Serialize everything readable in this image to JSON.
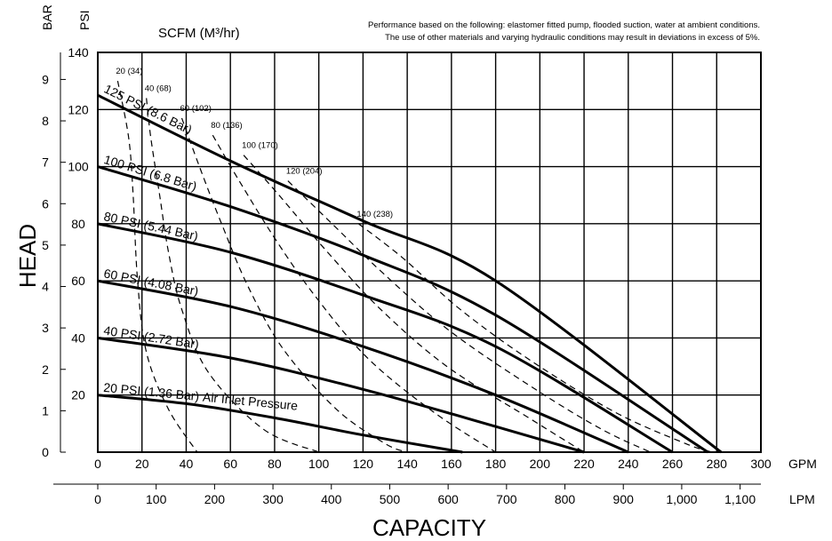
{
  "chart_data": {
    "type": "line",
    "title": "",
    "xlabel": "CAPACITY",
    "ylabel": "HEAD",
    "note_line1": "Performance based on the following: elastomer fitted pump, flooded suction, water at ambient conditions.",
    "note_line2": "The use of other materials and varying hydraulic conditions may result in deviations in excess of 5%.",
    "scfm_header": "SCFM (M³/hr)",
    "x_gpm": {
      "unit": "GPM",
      "lim": [
        0,
        300
      ],
      "ticks": [
        "0",
        "20",
        "40",
        "60",
        "80",
        "100",
        "120",
        "140",
        "160",
        "180",
        "200",
        "220",
        "240",
        "260",
        "280",
        "300"
      ]
    },
    "x_lpm": {
      "unit": "LPM",
      "lim": [
        0,
        1135.6
      ],
      "ticks": [
        {
          "v": 0,
          "label": "0"
        },
        {
          "v": 100,
          "label": "100"
        },
        {
          "v": 200,
          "label": "200"
        },
        {
          "v": 300,
          "label": "300"
        },
        {
          "v": 400,
          "label": "400"
        },
        {
          "v": 500,
          "label": "500"
        },
        {
          "v": 600,
          "label": "600"
        },
        {
          "v": 700,
          "label": "700"
        },
        {
          "v": 800,
          "label": "800"
        },
        {
          "v": 900,
          "label": "900"
        },
        {
          "v": 1000,
          "label": "1,000"
        },
        {
          "v": 1100,
          "label": "1,100"
        }
      ]
    },
    "y_psi": {
      "unit": "PSI",
      "lim": [
        0,
        140
      ],
      "ticks": [
        "20",
        "40",
        "60",
        "80",
        "100",
        "120",
        "140"
      ]
    },
    "y_bar": {
      "unit": "BAR",
      "ticks": [
        {
          "v": 0,
          "label": "0"
        },
        {
          "v": 1,
          "label": "1"
        },
        {
          "v": 2,
          "label": "2"
        },
        {
          "v": 3,
          "label": "3"
        },
        {
          "v": 4,
          "label": "4"
        },
        {
          "v": 5,
          "label": "5"
        },
        {
          "v": 6,
          "label": "6"
        },
        {
          "v": 7,
          "label": "7"
        },
        {
          "v": 8,
          "label": "8"
        },
        {
          "v": 9,
          "label": "9"
        }
      ]
    },
    "grid": true,
    "series": [
      {
        "name": "20 PSI (1.36 Bar)",
        "label": "20 PSI (1.36 Bar)",
        "suffix": "Air Inlet Pressure",
        "x": [
          0,
          40,
          80,
          120,
          165
        ],
        "y": [
          20,
          17,
          12,
          6,
          0
        ]
      },
      {
        "name": "40 PSI (2.72 Bar)",
        "label": "40 PSI (2.72 Bar)",
        "x": [
          0,
          60,
          120,
          180,
          220
        ],
        "y": [
          40,
          33,
          22,
          9,
          0
        ]
      },
      {
        "name": "60 PSI (4.08 Bar)",
        "label": "60 PSI (4.08 Bar)",
        "x": [
          0,
          60,
          120,
          180,
          240
        ],
        "y": [
          60,
          51,
          37,
          20,
          0
        ]
      },
      {
        "name": "80 PSI (5.44 Bar)",
        "label": "80 PSI (5.44 Bar)",
        "x": [
          0,
          60,
          120,
          180,
          260
        ],
        "y": [
          80,
          70,
          55,
          37,
          0
        ]
      },
      {
        "name": "100 PSI (6.8 Bar)",
        "label": "100 PSI (6.8 Bar)",
        "x": [
          0,
          60,
          120,
          180,
          276
        ],
        "y": [
          100,
          86,
          69,
          48,
          0
        ]
      },
      {
        "name": "125 PSI (8.6 Bar)",
        "label": "125 PSI (8.6 Bar)",
        "x": [
          0,
          60,
          120,
          180,
          282
        ],
        "y": [
          125,
          102,
          81,
          60,
          0
        ]
      }
    ],
    "scfm_curves": [
      {
        "label": "20 (34)",
        "points": [
          [
            9,
            130
          ],
          [
            14,
            110
          ],
          [
            16,
            90
          ],
          [
            18,
            60
          ],
          [
            22,
            35
          ],
          [
            32,
            15
          ],
          [
            45,
            0
          ]
        ]
      },
      {
        "label": "40 (68)",
        "points": [
          [
            22,
            124
          ],
          [
            24,
            110
          ],
          [
            28,
            90
          ],
          [
            32,
            70
          ],
          [
            38,
            50
          ],
          [
            50,
            28
          ],
          [
            75,
            8
          ],
          [
            100,
            0
          ]
        ]
      },
      {
        "label": "60 (102)",
        "points": [
          [
            38,
            117
          ],
          [
            46,
            100
          ],
          [
            56,
            80
          ],
          [
            68,
            58
          ],
          [
            84,
            36
          ],
          [
            108,
            15
          ],
          [
            130,
            3
          ],
          [
            140,
            0
          ]
        ]
      },
      {
        "label": "80 (136)",
        "points": [
          [
            52,
            111
          ],
          [
            64,
            95
          ],
          [
            80,
            75
          ],
          [
            98,
            55
          ],
          [
            122,
            33
          ],
          [
            152,
            14
          ],
          [
            180,
            0
          ]
        ]
      },
      {
        "label": "100 (170)",
        "points": [
          [
            66,
            104
          ],
          [
            82,
            90
          ],
          [
            104,
            70
          ],
          [
            128,
            50
          ],
          [
            158,
            30
          ],
          [
            195,
            12
          ],
          [
            220,
            0
          ]
        ]
      },
      {
        "label": "120 (204)",
        "points": [
          [
            86,
            95
          ],
          [
            106,
            80
          ],
          [
            130,
            62
          ],
          [
            160,
            42
          ],
          [
            198,
            22
          ],
          [
            228,
            8
          ],
          [
            250,
            0
          ]
        ]
      },
      {
        "label": "140 (238)",
        "points": [
          [
            118,
            80
          ],
          [
            138,
            68
          ],
          [
            164,
            50
          ],
          [
            196,
            32
          ],
          [
            234,
            14
          ],
          [
            266,
            3
          ],
          [
            278,
            0
          ]
        ]
      }
    ]
  }
}
